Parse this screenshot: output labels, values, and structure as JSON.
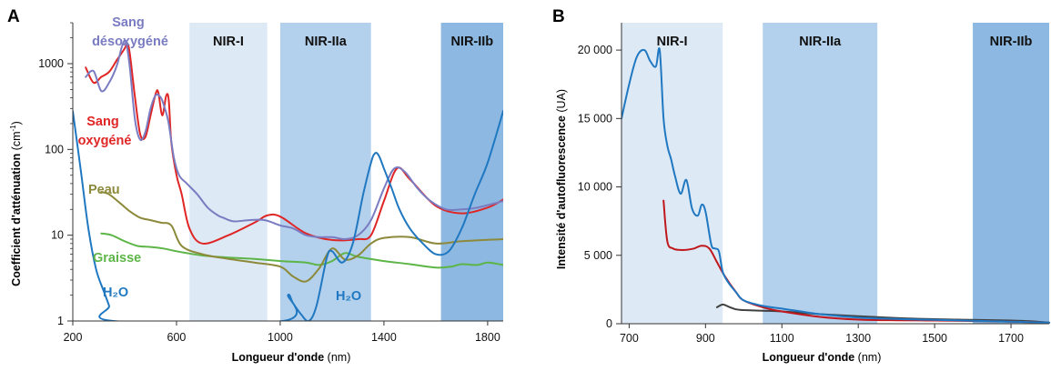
{
  "panels": [
    {
      "letter": "A",
      "xlabel_main": "Longueur d'onde",
      "xlabel_unit": " (nm)",
      "ylabel_main": "Coefficient d'atténuation",
      "ylabel_unit": " (cm",
      "ylabel_sup": "-1",
      "ylabel_close": ")",
      "bands": [
        {
          "label": "NIR-I",
          "from": 650,
          "to": 950,
          "color": "#dde9f5"
        },
        {
          "label": "NIR-IIa",
          "from": 1000,
          "to": 1350,
          "color": "#b3d0ec"
        },
        {
          "label": "NIR-IIb",
          "from": 1620,
          "to": 1860,
          "color": "#8cb8e1"
        }
      ],
      "labels": [
        {
          "lines": [
            "Sang",
            "désoxygéné"
          ],
          "color": "#7a7cc2"
        },
        {
          "lines": [
            "Sang",
            "oxygéné"
          ],
          "color": "#e02525"
        },
        {
          "lines": [
            "Peau"
          ],
          "color": "#8c8a3a"
        },
        {
          "lines": [
            "Graisse"
          ],
          "color": "#5db548"
        },
        {
          "lines": [
            "H₂O"
          ],
          "color": "#1f78c1"
        },
        {
          "lines": [
            "H₂O"
          ],
          "color": "#1f78c1"
        }
      ]
    },
    {
      "letter": "B",
      "xlabel_main": "Longueur d'onde",
      "xlabel_unit": " (nm)",
      "ylabel_main": "Intensité d'autofluorescence",
      "ylabel_unit": " (UA)",
      "bands": [
        {
          "label": "NIR-I",
          "from": 680,
          "to": 945,
          "color": "#dde9f5"
        },
        {
          "label": "NIR-IIa",
          "from": 1050,
          "to": 1350,
          "color": "#b3d0ec"
        },
        {
          "label": "NIR-IIb",
          "from": 1600,
          "to": 1800,
          "color": "#8cb8e1"
        }
      ]
    }
  ],
  "chart_data": [
    {
      "type": "line",
      "xlabel": "Longueur d'onde (nm)",
      "ylabel": "Coefficient d'atténuation (cm-1)",
      "xlim": [
        200,
        1860
      ],
      "ylim": [
        1,
        3000
      ],
      "yscale": "log",
      "xticks": [
        "200",
        "600",
        "1000",
        "1400",
        "1800"
      ],
      "yticks": [
        "1",
        "10",
        "100",
        "1000"
      ],
      "series": [
        {
          "name": "Sang désoxygéné",
          "color": "#7a7cc2",
          "x": [
            250,
            280,
            310,
            340,
            370,
            390,
            405,
            420,
            440,
            460,
            480,
            500,
            520,
            540,
            555,
            570,
            590,
            610,
            640,
            680,
            720,
            760,
            780,
            820,
            880,
            940,
            1000,
            1050,
            1100,
            1150,
            1200,
            1250,
            1300,
            1350,
            1400,
            1440,
            1480,
            1530,
            1580,
            1640,
            1700,
            1760,
            1860
          ],
          "y": [
            700,
            820,
            480,
            600,
            950,
            1600,
            1800,
            900,
            220,
            130,
            160,
            300,
            430,
            400,
            300,
            200,
            80,
            50,
            40,
            30,
            21,
            17,
            16,
            14.5,
            15,
            15,
            13,
            12,
            10,
            9.5,
            9.5,
            9,
            10,
            15,
            35,
            60,
            55,
            35,
            25,
            20,
            20,
            21,
            25
          ]
        },
        {
          "name": "Sang oxygéné",
          "color": "#e02525",
          "x": [
            250,
            280,
            310,
            340,
            370,
            400,
            410,
            420,
            440,
            460,
            480,
            500,
            520,
            530,
            545,
            560,
            570,
            580,
            600,
            620,
            650,
            700,
            800,
            900,
            950,
            1000,
            1100,
            1200,
            1300,
            1350,
            1400,
            1450,
            1500,
            1600,
            1700,
            1800,
            1860
          ],
          "y": [
            900,
            600,
            700,
            800,
            1100,
            1500,
            1700,
            1300,
            400,
            150,
            140,
            250,
            450,
            460,
            250,
            420,
            380,
            120,
            50,
            30,
            12,
            8,
            10,
            14,
            17,
            16.5,
            10.5,
            8.8,
            9,
            10,
            25,
            60,
            45,
            22,
            18,
            21,
            26
          ]
        },
        {
          "name": "Peau",
          "color": "#8c8a3a",
          "x": [
            310,
            340,
            380,
            420,
            460,
            500,
            540,
            580,
            620,
            700,
            800,
            900,
            1000,
            1050,
            1100,
            1150,
            1200,
            1250,
            1300,
            1350,
            1400,
            1500,
            1600,
            1700,
            1860
          ],
          "y": [
            32,
            30,
            24,
            19,
            16,
            15,
            14,
            13,
            7.5,
            6,
            5.3,
            4.8,
            4.3,
            3.3,
            2.9,
            4.1,
            7,
            5.2,
            5.8,
            8,
            9.3,
            9.5,
            8,
            8.5,
            9
          ]
        },
        {
          "name": "Graisse",
          "color": "#5db548",
          "x": [
            310,
            350,
            400,
            450,
            500,
            550,
            600,
            700,
            800,
            900,
            1000,
            1100,
            1150,
            1200,
            1250,
            1300,
            1400,
            1500,
            1600,
            1660,
            1700,
            1760,
            1800,
            1860
          ],
          "y": [
            10.5,
            10,
            8.5,
            7.5,
            7.3,
            7,
            6.5,
            5.8,
            5.5,
            5.3,
            5,
            4.8,
            4.5,
            5,
            6.2,
            5.6,
            5,
            4.6,
            4.2,
            4.3,
            4.6,
            4.5,
            4.8,
            4.5
          ]
        },
        {
          "name": "H₂O",
          "color": "#1f78c1",
          "x": [
            200,
            230,
            260,
            290,
            320,
            340,
            355,
            1010,
            1030,
            1050,
            1080,
            1110,
            1140,
            1180,
            1200,
            1240,
            1280,
            1320,
            1350,
            1365,
            1380,
            1400,
            1430,
            1460,
            1500,
            1550,
            1600,
            1650,
            1700,
            1750,
            1800,
            1860
          ],
          "y": [
            280,
            60,
            12,
            4,
            2.2,
            1.5,
            1,
            1,
            2,
            1.6,
            1.2,
            1,
            1.5,
            5.5,
            6.5,
            4.8,
            8,
            30,
            70,
            90,
            85,
            60,
            35,
            20,
            12,
            8,
            6,
            6.5,
            12,
            30,
            70,
            280
          ]
        }
      ]
    },
    {
      "type": "line",
      "xlabel": "Longueur d'onde (nm)",
      "ylabel": "Intensité d'autofluorescence (UA)",
      "xlim": [
        680,
        1800
      ],
      "ylim": [
        0,
        22000
      ],
      "xticks": [
        "700",
        "900",
        "1100",
        "1300",
        "1500",
        "1700"
      ],
      "yticks": [
        "0",
        "5 000",
        "10 000",
        "15 000",
        "20 000"
      ],
      "series": [
        {
          "name": "",
          "color": "#1f78c1",
          "x": [
            680,
            700,
            720,
            740,
            755,
            770,
            780,
            790,
            800,
            810,
            820,
            835,
            850,
            865,
            880,
            890,
            900,
            915,
            925,
            935,
            945,
            960,
            980,
            1000,
            1050,
            1100,
            1150,
            1200,
            1300,
            1400,
            1500,
            1600,
            1700,
            1800
          ],
          "y": [
            15000,
            17500,
            19500,
            20000,
            19200,
            18800,
            20000,
            15000,
            13000,
            12000,
            10800,
            9500,
            10500,
            8400,
            7900,
            8700,
            8200,
            5800,
            5500,
            5300,
            3800,
            3000,
            2300,
            1700,
            1300,
            1100,
            900,
            700,
            450,
            350,
            280,
            220,
            150,
            80
          ]
        },
        {
          "name": "",
          "color": "#c0171d",
          "x": [
            790,
            800,
            815,
            830,
            850,
            870,
            890,
            910,
            930,
            950,
            980,
            1000,
            1050,
            1100,
            1200,
            1300,
            1400,
            1500,
            1600,
            1700,
            1800
          ],
          "y": [
            9000,
            6000,
            5500,
            5400,
            5400,
            5500,
            5700,
            5500,
            4500,
            3500,
            2300,
            1700,
            1200,
            900,
            500,
            300,
            250,
            230,
            200,
            150,
            80
          ]
        },
        {
          "name": "",
          "color": "#404040",
          "x": [
            930,
            945,
            960,
            980,
            1000,
            1050,
            1100,
            1200,
            1300,
            1400,
            1500,
            1600,
            1700,
            1750,
            1800
          ],
          "y": [
            1200,
            1400,
            1250,
            1050,
            1000,
            950,
            900,
            700,
            550,
            420,
            330,
            280,
            230,
            180,
            80
          ]
        }
      ]
    }
  ]
}
